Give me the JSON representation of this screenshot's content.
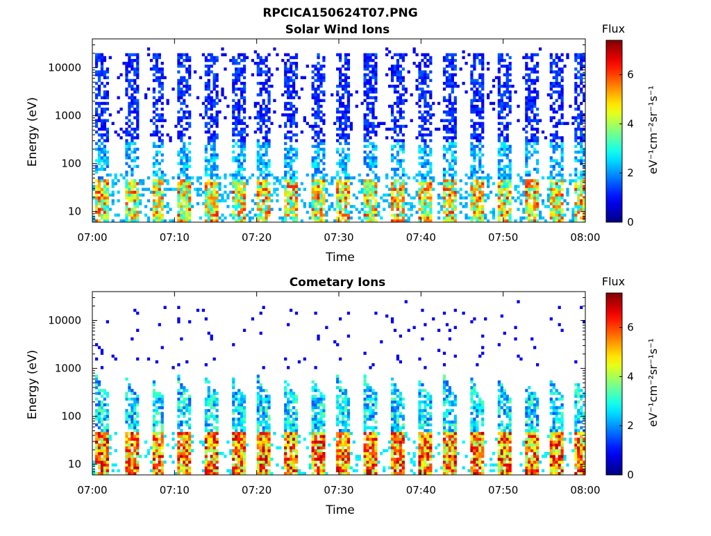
{
  "figure": {
    "title": "RPCICA150624T07.PNG"
  },
  "chart_data": [
    {
      "type": "heatmap",
      "title": "Solar Wind Ions",
      "xlabel": "Time",
      "ylabel": "Energy (eV)",
      "x_ticks": [
        "07:00",
        "07:10",
        "07:20",
        "07:30",
        "07:40",
        "07:50",
        "08:00"
      ],
      "xlim": [
        "07:00",
        "08:00"
      ],
      "y_scale": "log",
      "y_ticks": [
        "10",
        "100",
        "1000",
        "10000"
      ],
      "ylim": [
        6,
        40000
      ],
      "colorbar": {
        "title": "Flux",
        "label": "eV⁻¹cm⁻²sr⁻¹s⁻¹",
        "range": [
          0,
          7.4
        ],
        "ticks": [
          "0",
          "2",
          "4",
          "6"
        ],
        "colormap": "jet"
      },
      "pattern": {
        "period_minutes": 3.2,
        "burst_starts_minutes": [
          0.5,
          4.0,
          7.2,
          10.5,
          13.8,
          17.0,
          20.1,
          23.4,
          26.6,
          29.8,
          33.1,
          36.3,
          39.6,
          42.8,
          46.0,
          49.3,
          52.6,
          55.7,
          58.7
        ],
        "low_energy_peak_eV": [
          10,
          40
        ],
        "low_energy_peak_flux": 6.5,
        "high_energy_range_eV": [
          300,
          20000
        ],
        "high_energy_flux": 1.2
      },
      "grid": false,
      "legend": "colorbar-right"
    },
    {
      "type": "heatmap",
      "title": "Cometary Ions",
      "xlabel": "Time",
      "ylabel": "Energy (eV)",
      "x_ticks": [
        "07:00",
        "07:10",
        "07:20",
        "07:30",
        "07:40",
        "07:50",
        "08:00"
      ],
      "xlim": [
        "07:00",
        "08:00"
      ],
      "y_scale": "log",
      "y_ticks": [
        "10",
        "100",
        "1000",
        "10000"
      ],
      "ylim": [
        6,
        40000
      ],
      "colorbar": {
        "title": "Flux",
        "label": "eV⁻¹cm⁻²sr⁻¹s⁻¹",
        "range": [
          0,
          7.4
        ],
        "ticks": [
          "0",
          "2",
          "4",
          "6"
        ],
        "colormap": "jet"
      },
      "pattern": {
        "period_minutes": 3.2,
        "burst_starts_minutes": [
          0.5,
          4.0,
          7.2,
          10.5,
          13.8,
          17.0,
          20.1,
          23.4,
          26.6,
          29.8,
          33.1,
          36.3,
          39.6,
          42.8,
          46.0,
          49.3,
          52.6,
          55.7,
          58.7
        ],
        "low_energy_peak_eV": [
          10,
          40
        ],
        "low_energy_peak_flux": 7.0,
        "extension_energy_eV": [
          60,
          600
        ],
        "extension_flux": 3.5,
        "sparse_high_energy_eV": [
          1000,
          20000
        ],
        "sparse_high_energy_flux": 1.3
      },
      "grid": false,
      "legend": "colorbar-right"
    }
  ]
}
